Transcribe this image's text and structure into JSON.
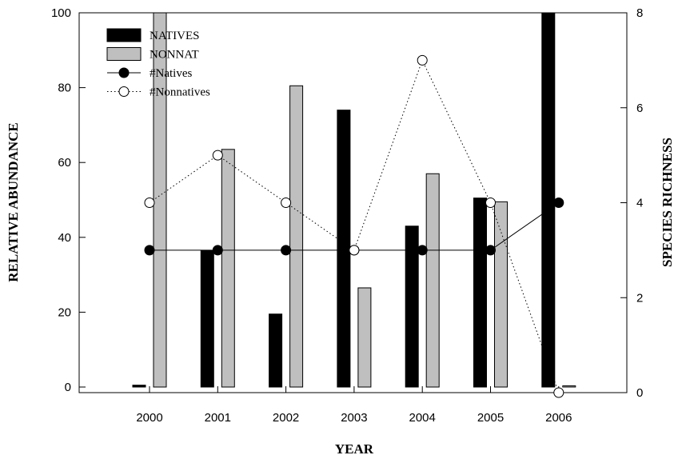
{
  "chart_data": {
    "type": "bar",
    "categories": [
      "2000",
      "2001",
      "2002",
      "2003",
      "2004",
      "2005",
      "2006"
    ],
    "xlabel": "YEAR",
    "ylabel": "RELATIVE ABUNDANCE",
    "y2label": "SPECIES RICHNESS",
    "ylim": [
      0,
      100
    ],
    "y2lim": [
      0,
      8
    ],
    "yticks": [
      "0",
      "20",
      "40",
      "60",
      "80",
      "100"
    ],
    "y2ticks": [
      "0",
      "2",
      "4",
      "6",
      "8"
    ],
    "bar_series": [
      {
        "name": "NATIVES",
        "color": "#000000",
        "values": [
          0.5,
          36.5,
          19.5,
          74,
          43,
          50.5,
          100
        ]
      },
      {
        "name": "NONNAT",
        "color": "#bfbfbf",
        "values": [
          100,
          63.5,
          80.5,
          26.5,
          57,
          49.5,
          0
        ]
      }
    ],
    "line_series": [
      {
        "name": "#Natives",
        "axis": "right",
        "marker": "filled-circle",
        "line": "solid",
        "values": [
          3,
          3,
          3,
          3,
          3,
          3,
          4
        ]
      },
      {
        "name": "#Nonnatives",
        "axis": "right",
        "marker": "open-circle",
        "line": "dotted",
        "values": [
          4,
          5,
          4,
          3,
          7,
          4,
          0
        ]
      }
    ],
    "grid": false,
    "legend_position": "top-left"
  }
}
